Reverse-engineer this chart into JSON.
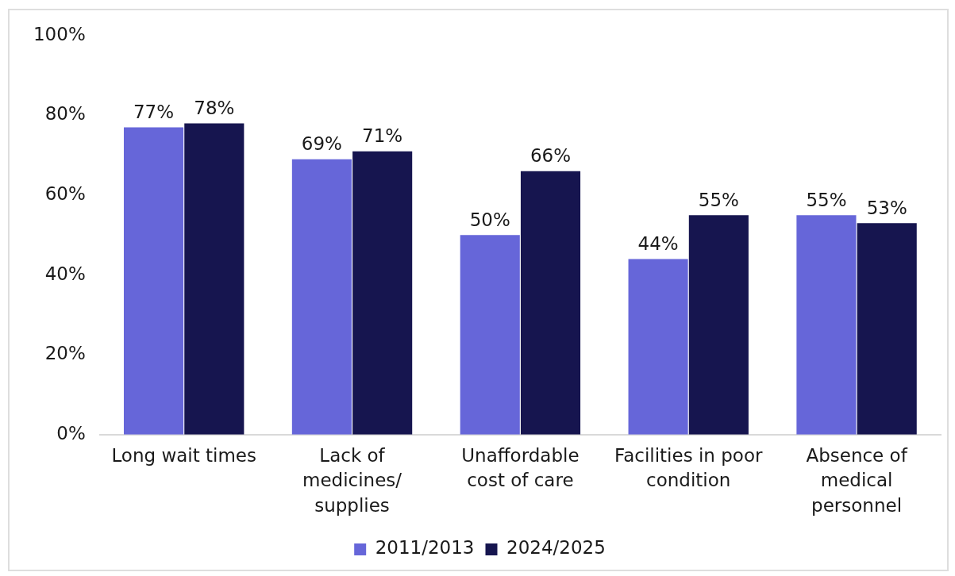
{
  "chart_data": {
    "type": "bar",
    "categories": [
      "Long wait times",
      "Lack of medicines/ supplies",
      "Unaffordable cost of care",
      "Facilities in poor condition",
      "Absence of medical personnel"
    ],
    "series": [
      {
        "name": "2011/2013",
        "color": "#6666d9",
        "values": [
          77,
          69,
          50,
          44,
          55
        ],
        "value_labels": [
          "77%",
          "69%",
          "50%",
          "44%",
          "55%"
        ]
      },
      {
        "name": "2024/2025",
        "color": "#16154f",
        "values": [
          78,
          71,
          66,
          55,
          53
        ],
        "value_labels": [
          "78%",
          "71%",
          "66%",
          "55%",
          "53%"
        ]
      }
    ],
    "ylim": [
      0,
      100
    ],
    "yticks": [
      {
        "value": 0,
        "label": "0%"
      },
      {
        "value": 20,
        "label": "20%"
      },
      {
        "value": 40,
        "label": "40%"
      },
      {
        "value": 60,
        "label": "60%"
      },
      {
        "value": 80,
        "label": "80%"
      },
      {
        "value": 100,
        "label": "100%"
      }
    ],
    "legend": "bottom",
    "grid": false
  }
}
